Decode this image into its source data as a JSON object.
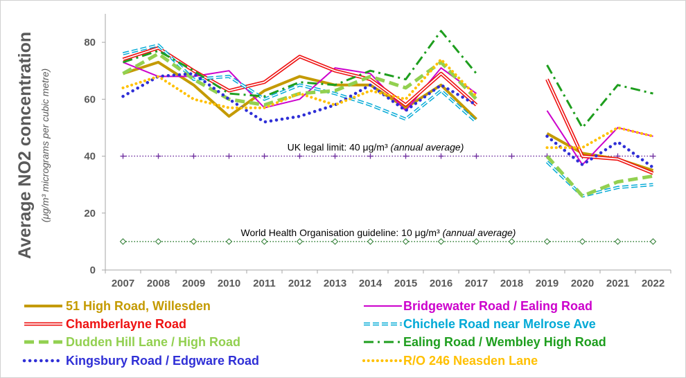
{
  "chart_data": {
    "type": "line",
    "ylabel": "Average NO2 concentration",
    "ylabel_unit": "(μg/m³ micrograms per cubic metre)",
    "ylim": [
      0,
      90
    ],
    "yticks": [
      "0",
      "20",
      "40",
      "60",
      "80"
    ],
    "categories": [
      "2007",
      "2008",
      "2009",
      "2010",
      "2011",
      "2012",
      "2013",
      "2014",
      "2015",
      "2016",
      "2017",
      "2018",
      "2019",
      "2020",
      "2021",
      "2022"
    ],
    "grid": false,
    "legend_position": "bottom",
    "reference_lines": [
      {
        "value": 40,
        "label": "UK legal limit:  40 μg/m³",
        "label_note": "(annual average)",
        "color": "#7030a0",
        "marker": "plus"
      },
      {
        "value": 10,
        "label": "World Health Organisation guideline:  10 μg/m³",
        "label_note": "(annual average)",
        "color": "#2e7d32",
        "marker": "diamond"
      }
    ],
    "series": [
      {
        "name": "51 High Road, Willesden",
        "color": "#c49a00",
        "style": "solid-thick",
        "values": [
          69,
          73,
          65,
          54,
          63,
          68,
          65,
          65,
          57,
          65,
          53,
          null,
          48,
          41,
          39,
          35
        ]
      },
      {
        "name": "Bridgewater Road / Ealing Road",
        "color": "#cc00cc",
        "style": "solid-thin",
        "values": [
          73,
          68,
          68,
          70,
          57,
          60,
          71,
          69,
          56,
          71,
          62,
          null,
          56,
          37,
          50,
          47
        ]
      },
      {
        "name": "Chamberlayne Road",
        "color": "#ee1111",
        "style": "double",
        "values": [
          74,
          78,
          70,
          63,
          66,
          75,
          70,
          67,
          58,
          69,
          58,
          null,
          67,
          40,
          39,
          34
        ]
      },
      {
        "name": "Chichele Road near Melrose Ave",
        "color": "#00a9d6",
        "style": "double-dashed",
        "values": [
          76,
          79,
          67,
          68,
          60,
          65,
          62,
          58,
          53,
          63,
          52,
          null,
          38,
          26,
          29,
          30
        ]
      },
      {
        "name": "Dudden Hill Lane / High Road",
        "color": "#92d050",
        "style": "dashed-thick",
        "values": [
          69,
          76,
          67,
          60,
          58,
          62,
          63,
          68,
          64,
          73,
          60,
          null,
          40,
          26,
          31,
          33
        ]
      },
      {
        "name": "Ealing Road / Wembley High Road",
        "color": "#1e9e1e",
        "style": "dash-dot",
        "values": [
          73,
          77,
          70,
          62,
          61,
          66,
          65,
          70,
          67,
          84,
          69,
          null,
          72,
          50,
          65,
          62
        ]
      },
      {
        "name": "Kingsbury Road / Edgware Road",
        "color": "#2f2fd6",
        "style": "dotted-thick",
        "values": [
          61,
          68,
          69,
          60,
          52,
          54,
          58,
          65,
          56,
          65,
          58,
          null,
          47,
          37,
          45,
          36
        ]
      },
      {
        "name": "R/O 246 Neasden Lane",
        "color": "#ffc000",
        "style": "dotted",
        "values": [
          64,
          68,
          60,
          57,
          57,
          62,
          58,
          63,
          60,
          74,
          61,
          null,
          43,
          43,
          50,
          47
        ]
      }
    ]
  }
}
